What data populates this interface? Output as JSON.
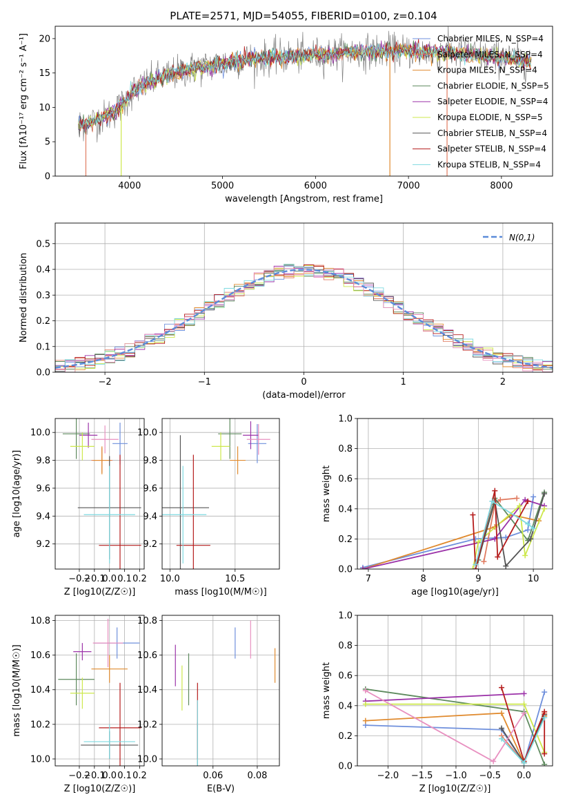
{
  "figure": {
    "title": "PLATE=2571, MJD=54055, FIBERID=0100, z=0.104"
  },
  "chart_data": [
    {
      "id": "spectrum",
      "type": "line",
      "xlabel": "wavelength [Angstrom, rest frame]",
      "ylabel": "Flux [fλ10⁻¹⁷ erg cm⁻² s⁻¹ A⁻¹]",
      "xlim": [
        3200,
        8550
      ],
      "ylim": [
        0,
        21.8
      ],
      "xticks": [
        4000,
        5000,
        6000,
        7000,
        8000
      ],
      "yticks": [
        0,
        5,
        10,
        15,
        20
      ],
      "grid": false,
      "legend_position": "top-right",
      "data_range": [
        3450,
        8320
      ],
      "continuum_knots": {
        "x": [
          3450,
          3560,
          3700,
          3850,
          3950,
          4050,
          4300,
          4600,
          4900,
          5200,
          5600,
          6000,
          6400,
          6800,
          7200,
          7600,
          8000,
          8320
        ],
        "y": [
          7.5,
          7.8,
          8.4,
          9.5,
          10.8,
          12.5,
          14.2,
          15.4,
          16.1,
          16.9,
          17.3,
          17.6,
          18.0,
          18.2,
          18.1,
          17.8,
          17.2,
          16.7
        ]
      },
      "series": [
        {
          "name": "Chabrier MILES, N_SSP=4",
          "color": "#6e8fdc"
        },
        {
          "name": "Salpeter MILES, N_SSP=4",
          "color": "#e07a5f"
        },
        {
          "name": "Kroupa MILES, N_SSP=4",
          "color": "#e08a2e"
        },
        {
          "name": "Chabrier ELODIE, N_SSP=5",
          "color": "#5e8a5e"
        },
        {
          "name": "Salpeter ELODIE, N_SSP=4",
          "color": "#9b32a8"
        },
        {
          "name": "Kroupa ELODIE, N_SSP=5",
          "color": "#cde84b"
        },
        {
          "name": "Chabrier STELIB, N_SSP=4",
          "color": "#555555"
        },
        {
          "name": "Salpeter STELIB, N_SSP=4",
          "color": "#b51b1b"
        },
        {
          "name": "Kroupa STELIB, N_SSP=4",
          "color": "#7dd9e0"
        }
      ],
      "data_color": "#808080",
      "drop_lines": [
        {
          "x": 3530,
          "color": "#e07a5f"
        },
        {
          "x": 3910,
          "color": "#cde84b"
        },
        {
          "x": 6800,
          "color": "#e08a2e"
        },
        {
          "x": 7415,
          "color": "#e07a5f"
        }
      ]
    },
    {
      "id": "residuals",
      "type": "histogram",
      "xlabel": "(data-model)/error",
      "ylabel": "Normed distribution",
      "xlim": [
        -2.5,
        2.5
      ],
      "ylim": [
        0,
        0.58
      ],
      "xticks": [
        -2,
        -1,
        0,
        1,
        2
      ],
      "yticks": [
        0.0,
        0.1,
        0.2,
        0.3,
        0.4,
        0.5
      ],
      "grid": true,
      "legend_position": "top-right",
      "reference": {
        "name": "N(0,1)",
        "color": "#5b8bd9"
      },
      "bin_width": 0.1,
      "colors": [
        "#6e8fdc",
        "#e07a5f",
        "#e08a2e",
        "#5e8a5e",
        "#9b32a8",
        "#cde84b",
        "#555555",
        "#b51b1b",
        "#7dd9e0",
        "#e890c0"
      ]
    },
    {
      "id": "age-vs-Z",
      "type": "errorbar",
      "xlabel": "Z [log10(Z/Z☉)]",
      "ylabel": "age  [log10(age/yr)]",
      "xlim": [
        -0.36,
        0.23
      ],
      "ylim": [
        9.02,
        10.1
      ],
      "xticks": [
        -0.2,
        -0.1,
        0.0,
        0.1,
        0.2
      ],
      "yticks": [
        9.2,
        9.4,
        9.6,
        9.8,
        10.0
      ],
      "grid": true,
      "points": [
        {
          "x": 0.07,
          "y": 9.92,
          "xerr": 0.05,
          "yerr": 0.15,
          "color": "#6e8fdc"
        },
        {
          "x": -0.05,
          "y": 9.8,
          "xerr": 0.07,
          "yerr": 0.09,
          "color": "#e07a5f"
        },
        {
          "x": -0.05,
          "y": 9.8,
          "xerr": 0.06,
          "yerr": 0.1,
          "color": "#e08a2e"
        },
        {
          "x": -0.22,
          "y": 9.99,
          "xerr": 0.09,
          "yerr": 0.18,
          "color": "#5e8a5e"
        },
        {
          "x": -0.14,
          "y": 9.98,
          "xerr": 0.06,
          "yerr": 0.09,
          "color": "#9b32a8"
        },
        {
          "x": -0.18,
          "y": 9.9,
          "xerr": 0.08,
          "yerr": 0.1,
          "color": "#cde84b"
        },
        {
          "x": 0.0,
          "y": 9.46,
          "xerr": 0.21,
          "yerr": 0.37,
          "color": "#555555"
        },
        {
          "x": 0.07,
          "y": 9.19,
          "xerr": 0.14,
          "yerr": 0.65,
          "color": "#b51b1b"
        },
        {
          "x": 0.0,
          "y": 9.41,
          "xerr": 0.17,
          "yerr": 0.35,
          "color": "#7dd9e0"
        },
        {
          "x": -0.03,
          "y": 9.95,
          "xerr": 0.09,
          "yerr": 0.1,
          "color": "#e890c0"
        }
      ]
    },
    {
      "id": "age-vs-mass",
      "type": "errorbar",
      "xlabel": "mass [log10(M/M☉)]",
      "ylabel": "",
      "xlim": [
        9.94,
        10.84
      ],
      "ylim": [
        9.02,
        10.1
      ],
      "xticks": [
        10.0,
        10.5
      ],
      "yticks": [
        9.2,
        9.4,
        9.6,
        9.8,
        10.0
      ],
      "grid": true,
      "points": [
        {
          "x": 10.67,
          "y": 9.92,
          "xerr": 0.07,
          "yerr": 0.14,
          "color": "#6e8fdc"
        },
        {
          "x": 10.52,
          "y": 9.8,
          "xerr": 0.06,
          "yerr": 0.1,
          "color": "#e08a2e"
        },
        {
          "x": 10.46,
          "y": 9.99,
          "xerr": 0.09,
          "yerr": 0.18,
          "color": "#5e8a5e"
        },
        {
          "x": 10.62,
          "y": 9.98,
          "xerr": 0.06,
          "yerr": 0.1,
          "color": "#9b32a8"
        },
        {
          "x": 10.39,
          "y": 9.9,
          "xerr": 0.07,
          "yerr": 0.1,
          "color": "#cde84b"
        },
        {
          "x": 10.08,
          "y": 9.46,
          "xerr": 0.22,
          "yerr": 0.52,
          "color": "#555555"
        },
        {
          "x": 10.18,
          "y": 9.19,
          "xerr": 0.13,
          "yerr": 0.65,
          "color": "#b51b1b"
        },
        {
          "x": 10.1,
          "y": 9.41,
          "xerr": 0.18,
          "yerr": 0.35,
          "color": "#7dd9e0"
        },
        {
          "x": 10.68,
          "y": 9.95,
          "xerr": 0.09,
          "yerr": 0.11,
          "color": "#e890c0"
        }
      ]
    },
    {
      "id": "weight-vs-age",
      "type": "line",
      "xlabel": "age  [log10(age/yr)]",
      "ylabel": "mass weight",
      "xlim": [
        6.8,
        10.35
      ],
      "ylim": [
        0,
        1.0
      ],
      "xticks": [
        7,
        8,
        9,
        10
      ],
      "yticks": [
        0.0,
        0.2,
        0.4,
        0.6,
        0.8,
        1.0
      ],
      "grid": true,
      "series": [
        {
          "color": "#6e8fdc",
          "x": [
            6.9,
            8.95,
            9.5,
            9.9,
            10.0
          ],
          "y": [
            0.01,
            0.2,
            0.21,
            0.26,
            0.48
          ]
        },
        {
          "color": "#e07a5f",
          "x": [
            9.1,
            9.3,
            9.4,
            9.7
          ],
          "y": [
            0.05,
            0.43,
            0.46,
            0.47
          ]
        },
        {
          "color": "#e08a2e",
          "x": [
            6.9,
            9.3,
            9.6,
            10.1
          ],
          "y": [
            0.0,
            0.28,
            0.36,
            0.32
          ]
        },
        {
          "color": "#5e8a5e",
          "x": [
            9.0,
            9.3,
            9.9,
            10.2
          ],
          "y": [
            0.06,
            0.47,
            0.19,
            0.51
          ]
        },
        {
          "color": "#9b32a8",
          "x": [
            6.9,
            9.3,
            9.85,
            10.2
          ],
          "y": [
            0.0,
            0.2,
            0.46,
            0.42
          ]
        },
        {
          "color": "#cde84b",
          "x": [
            8.9,
            9.0,
            9.75,
            9.85,
            10.2
          ],
          "y": [
            0.0,
            0.18,
            0.42,
            0.09,
            0.4
          ]
        },
        {
          "color": "#555555",
          "x": [
            8.95,
            9.3,
            9.5,
            9.95,
            10.2
          ],
          "y": [
            0.0,
            0.45,
            0.02,
            0.2,
            0.5
          ]
        },
        {
          "color": "#b51b1b",
          "x": [
            8.9,
            8.95,
            9.3,
            9.35,
            9.9
          ],
          "y": [
            0.36,
            0.0,
            0.52,
            0.08,
            0.45
          ]
        },
        {
          "color": "#7dd9e0",
          "x": [
            8.95,
            9.25,
            9.9,
            10.0
          ],
          "y": [
            0.03,
            0.45,
            0.3,
            0.27
          ]
        }
      ]
    },
    {
      "id": "mass-vs-Z",
      "type": "errorbar",
      "xlabel": "Z [log10(Z/Z☉)]",
      "ylabel": "mass [log10(M/M☉)]",
      "xlim": [
        -0.36,
        0.23
      ],
      "ylim": [
        9.96,
        10.83
      ],
      "xticks": [
        -0.2,
        -0.1,
        0.0,
        0.1,
        0.2
      ],
      "yticks": [
        10.0,
        10.2,
        10.4,
        10.6,
        10.8
      ],
      "grid": true,
      "points": [
        {
          "x": 0.05,
          "y": 10.67,
          "xerr": 0.15,
          "yerr": 0.09,
          "color": "#6e8fdc"
        },
        {
          "x": 0.0,
          "y": 10.52,
          "xerr": 0.12,
          "yerr": 0.08,
          "color": "#e08a2e"
        },
        {
          "x": -0.22,
          "y": 10.46,
          "xerr": 0.12,
          "yerr": 0.15,
          "color": "#5e8a5e"
        },
        {
          "x": -0.18,
          "y": 10.62,
          "xerr": 0.06,
          "yerr": 0.05,
          "color": "#9b32a8"
        },
        {
          "x": -0.18,
          "y": 10.38,
          "xerr": 0.08,
          "yerr": 0.09,
          "color": "#cde84b"
        },
        {
          "x": 0.0,
          "y": 10.08,
          "xerr": 0.19,
          "yerr": 0.08,
          "color": "#555555"
        },
        {
          "x": 0.07,
          "y": 10.18,
          "xerr": 0.14,
          "yerr": 0.26,
          "color": "#b51b1b"
        },
        {
          "x": 0.0,
          "y": 10.1,
          "xerr": 0.17,
          "yerr": 0.1,
          "color": "#7dd9e0"
        },
        {
          "x": -0.01,
          "y": 10.67,
          "xerr": 0.1,
          "yerr": 0.14,
          "color": "#e890c0"
        }
      ]
    },
    {
      "id": "mass-vs-EBV",
      "type": "errorbar",
      "xlabel": "E(B-V)",
      "ylabel": "",
      "xlim": [
        0.037,
        0.09
      ],
      "ylim": [
        9.96,
        10.83
      ],
      "xticks": [
        0.06,
        0.08
      ],
      "yticks": [
        10.0,
        10.2,
        10.4,
        10.6,
        10.8
      ],
      "grid": true,
      "points": [
        {
          "x": 0.07,
          "y": 10.67,
          "xerr": 0,
          "yerr": 0.09,
          "color": "#6e8fdc"
        },
        {
          "x": 0.088,
          "y": 10.54,
          "xerr": 0,
          "yerr": 0.1,
          "color": "#e08a2e"
        },
        {
          "x": 0.049,
          "y": 10.46,
          "xerr": 0,
          "yerr": 0.15,
          "color": "#5e8a5e"
        },
        {
          "x": 0.043,
          "y": 10.54,
          "xerr": 0,
          "yerr": 0.12,
          "color": "#9b32a8"
        },
        {
          "x": 0.046,
          "y": 10.41,
          "xerr": 0,
          "yerr": 0.13,
          "color": "#cde84b"
        },
        {
          "x": 0.053,
          "y": 10.08,
          "xerr": 0,
          "yerr": 0.13,
          "color": "#555555"
        },
        {
          "x": 0.053,
          "y": 10.22,
          "xerr": 0,
          "yerr": 0.22,
          "color": "#b51b1b"
        },
        {
          "x": 0.053,
          "y": 10.1,
          "xerr": 0,
          "yerr": 0.24,
          "color": "#7dd9e0"
        },
        {
          "x": 0.077,
          "y": 10.69,
          "xerr": 0,
          "yerr": 0.11,
          "color": "#e890c0"
        }
      ]
    },
    {
      "id": "weight-vs-Z",
      "type": "line",
      "xlabel": "Z [log10(Z/Z☉)]",
      "ylabel": "mass weight",
      "xlim": [
        -2.45,
        0.42
      ],
      "ylim": [
        0,
        1.0
      ],
      "xticks": [
        -2.0,
        -1.5,
        -1.0,
        -0.5,
        0.0
      ],
      "yticks": [
        0.0,
        0.2,
        0.4,
        0.6,
        0.8,
        1.0
      ],
      "grid": true,
      "series": [
        {
          "color": "#6e8fdc",
          "x": [
            -2.33,
            -0.33,
            0.0,
            0.3
          ],
          "y": [
            0.27,
            0.24,
            0.02,
            0.49
          ]
        },
        {
          "color": "#e07a5f",
          "x": [
            -0.33,
            0.0,
            0.3
          ],
          "y": [
            0.2,
            0.02,
            0.35
          ]
        },
        {
          "color": "#e08a2e",
          "x": [
            -2.33,
            -0.33,
            0.0,
            0.3
          ],
          "y": [
            0.3,
            0.35,
            0.02,
            0.33
          ]
        },
        {
          "color": "#5e8a5e",
          "x": [
            -2.33,
            0.0,
            0.3
          ],
          "y": [
            0.51,
            0.36,
            0.01
          ]
        },
        {
          "color": "#9b32a8",
          "x": [
            -2.33,
            0.0
          ],
          "y": [
            0.43,
            0.48
          ]
        },
        {
          "color": "#cde84b",
          "x": [
            -2.33,
            0.0,
            0.3
          ],
          "y": [
            0.41,
            0.41,
            0.09
          ]
        },
        {
          "color": "#555555",
          "x": [
            -0.33,
            0.0,
            0.3
          ],
          "y": [
            0.25,
            0.02,
            0.34
          ]
        },
        {
          "color": "#b51b1b",
          "x": [
            -0.33,
            0.0,
            0.3,
            0.3
          ],
          "y": [
            0.52,
            0.03,
            0.36,
            0.08
          ]
        },
        {
          "color": "#7dd9e0",
          "x": [
            -0.33,
            0.0,
            0.3
          ],
          "y": [
            0.18,
            0.02,
            0.32
          ]
        },
        {
          "color": "#e890c0",
          "x": [
            -2.33,
            -0.45,
            0.0
          ],
          "y": [
            0.5,
            0.03,
            0.35
          ]
        }
      ]
    }
  ]
}
